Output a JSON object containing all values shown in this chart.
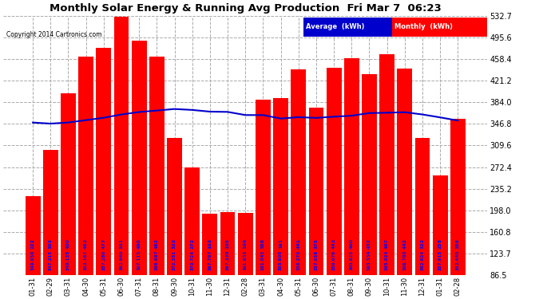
{
  "title": "Monthly Solar Energy & Running Avg Production  Fri Mar 7  06:23",
  "copyright": "Copyright 2014 Cartronics.com",
  "categories": [
    "01-31",
    "02-29",
    "03-31",
    "04-30",
    "05-31",
    "06-30",
    "07-31",
    "08-31",
    "09-30",
    "10-31",
    "11-30",
    "12-31",
    "02-28",
    "03-31",
    "04-30",
    "05-31",
    "06-30",
    "07-31",
    "08-31",
    "09-30",
    "10-31",
    "11-30",
    "12-31",
    "01-31",
    "02-28"
  ],
  "monthly_values": [
    222,
    302,
    400,
    462,
    477,
    531,
    490,
    462,
    322,
    272,
    192,
    195,
    194,
    388,
    391,
    441,
    375,
    443,
    460,
    432,
    467,
    442,
    322,
    258,
    356
  ],
  "avg_values": [
    349.058,
    347.215,
    349.135,
    353.167,
    357.28,
    362.94,
    367.115,
    369.697,
    372.351,
    370.724,
    367.797,
    367.339,
    361.933,
    361.843,
    355.9,
    358.27,
    357.038,
    359.079,
    360.825,
    365.354,
    365.924,
    366.78,
    362.924,
    357.915,
    352.44
  ],
  "bar_color": "#ff0000",
  "line_color": "#0000cc",
  "bg_color": "#ffffff",
  "plot_bg_color": "#ffffff",
  "grid_color": "#aaaaaa",
  "ylim": [
    86.5,
    532.7
  ],
  "yticks": [
    86.5,
    123.7,
    160.8,
    198.0,
    235.2,
    272.4,
    309.6,
    346.8,
    384.0,
    421.2,
    458.4,
    495.6,
    532.7
  ],
  "title_fontsize": 10,
  "legend_avg_label": "Average  (kWh)",
  "legend_monthly_label": "Monthly  (kWh)",
  "avg_label_color": "#ffffff",
  "avg_label_bg": "#0000cc",
  "monthly_label_bg": "#ff0000"
}
